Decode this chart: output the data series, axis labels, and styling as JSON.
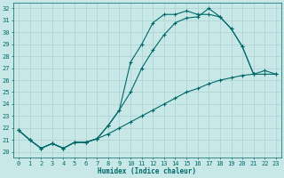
{
  "xlabel": "Humidex (Indice chaleur)",
  "background_color": "#c8e8e8",
  "grid_color": "#b0d4d4",
  "line_color": "#006868",
  "marker": "+",
  "xlim": [
    -0.5,
    23.5
  ],
  "ylim": [
    19.5,
    32.5
  ],
  "xticks": [
    0,
    1,
    2,
    3,
    4,
    5,
    6,
    7,
    8,
    9,
    10,
    11,
    12,
    13,
    14,
    15,
    16,
    17,
    18,
    19,
    20,
    21,
    22,
    23
  ],
  "yticks": [
    20,
    21,
    22,
    23,
    24,
    25,
    26,
    27,
    28,
    29,
    30,
    31,
    32
  ],
  "curve1_x": [
    0,
    1,
    2,
    3,
    4,
    5,
    6,
    7,
    8,
    9,
    10,
    11,
    12,
    13,
    14,
    15,
    16,
    17,
    18,
    19,
    20,
    21
  ],
  "curve1_y": [
    21.8,
    21.0,
    20.3,
    20.7,
    20.3,
    20.8,
    20.8,
    21.1,
    22.2,
    23.5,
    27.5,
    29.0,
    30.8,
    31.5,
    31.5,
    31.8,
    31.5,
    31.5,
    31.3,
    30.3,
    28.8,
    26.5
  ],
  "curve2_x": [
    0,
    1,
    2,
    3,
    4,
    5,
    6,
    7,
    8,
    9,
    10,
    11,
    12,
    13,
    14,
    15,
    16,
    17,
    18,
    19,
    20,
    21,
    22,
    23
  ],
  "curve2_y": [
    21.8,
    21.0,
    20.3,
    20.7,
    20.3,
    20.8,
    20.8,
    21.1,
    22.2,
    23.5,
    25.0,
    27.0,
    28.5,
    29.8,
    30.8,
    31.2,
    31.3,
    32.0,
    31.3,
    30.3,
    28.8,
    26.5,
    26.8,
    26.5
  ],
  "curve3_x": [
    0,
    1,
    2,
    3,
    4,
    5,
    6,
    7,
    8,
    9,
    10,
    11,
    12,
    13,
    14,
    15,
    16,
    17,
    18,
    19,
    20,
    21,
    22,
    23
  ],
  "curve3_y": [
    21.8,
    21.0,
    20.3,
    20.7,
    20.3,
    20.8,
    20.8,
    21.1,
    21.5,
    22.0,
    22.5,
    23.0,
    23.5,
    24.0,
    24.5,
    25.0,
    25.3,
    25.7,
    26.0,
    26.2,
    26.4,
    26.5,
    26.5,
    26.5
  ],
  "axis_fontsize": 5.5,
  "tick_fontsize": 5.0
}
